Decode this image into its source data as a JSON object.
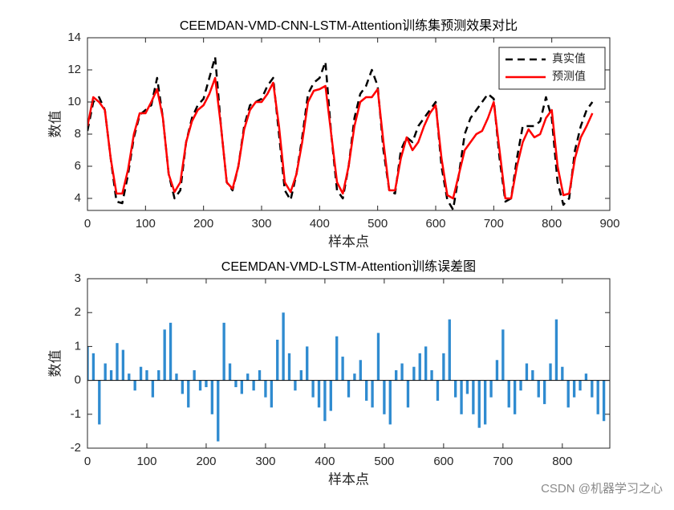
{
  "chart_data": [
    {
      "type": "line",
      "title": "CEEMDAN-VMD-CNN-LSTM-Attention训练集预测效果对比",
      "xlabel": "样本点",
      "ylabel": "数值",
      "x": [
        0,
        10,
        20,
        30,
        40,
        50,
        60,
        70,
        80,
        90,
        100,
        110,
        120,
        130,
        140,
        150,
        160,
        170,
        180,
        190,
        200,
        210,
        220,
        230,
        240,
        250,
        260,
        270,
        280,
        290,
        300,
        310,
        320,
        330,
        340,
        350,
        360,
        370,
        380,
        390,
        400,
        410,
        420,
        430,
        440,
        450,
        460,
        470,
        480,
        490,
        500,
        510,
        520,
        530,
        540,
        550,
        560,
        570,
        580,
        590,
        600,
        610,
        620,
        630,
        640,
        650,
        660,
        670,
        680,
        690,
        700,
        710,
        720,
        730,
        740,
        750,
        760,
        770,
        780,
        790,
        800,
        810,
        820,
        830,
        840,
        850,
        860,
        870
      ],
      "series": [
        {
          "name": "真实值",
          "color": "#000000",
          "linestyle": "dashed",
          "values": [
            8.2,
            10.0,
            10.3,
            9.5,
            6.5,
            3.8,
            3.7,
            5.5,
            7.8,
            9.2,
            9.5,
            9.8,
            11.5,
            9.0,
            5.5,
            4.0,
            4.5,
            7.5,
            9.0,
            9.8,
            10.2,
            11.5,
            12.8,
            8.5,
            5.0,
            4.5,
            6.0,
            8.5,
            9.8,
            10.0,
            10.2,
            11.0,
            11.5,
            8.0,
            4.5,
            3.9,
            5.5,
            7.8,
            10.5,
            11.2,
            11.5,
            12.5,
            8.0,
            4.5,
            4.0,
            6.0,
            9.0,
            10.5,
            11.0,
            12.0,
            11.0,
            7.0,
            4.5,
            4.3,
            7.0,
            7.8,
            7.5,
            8.5,
            9.0,
            9.5,
            10.0,
            6.0,
            3.9,
            3.3,
            5.5,
            8.0,
            9.0,
            9.5,
            10.0,
            10.5,
            10.2,
            6.5,
            3.8,
            4.0,
            6.5,
            8.5,
            8.5,
            8.5,
            8.8,
            10.3,
            9.0,
            5.0,
            3.6,
            4.0,
            7.0,
            8.5,
            9.5,
            10.0
          ]
        },
        {
          "name": "预测值",
          "color": "#ff0000",
          "linestyle": "solid",
          "values": [
            8.5,
            10.3,
            10.0,
            9.5,
            6.5,
            4.3,
            4.3,
            5.8,
            8.0,
            9.3,
            9.3,
            10.0,
            10.8,
            9.0,
            5.5,
            4.4,
            5.0,
            7.5,
            8.8,
            9.5,
            9.8,
            10.5,
            11.5,
            8.5,
            5.0,
            4.6,
            6.0,
            8.3,
            9.5,
            10.0,
            10.0,
            10.5,
            11.2,
            8.5,
            5.0,
            4.4,
            5.5,
            7.5,
            10.0,
            10.7,
            10.8,
            11.0,
            8.0,
            5.0,
            4.3,
            6.0,
            8.5,
            10.0,
            10.3,
            10.3,
            10.8,
            7.5,
            4.5,
            4.5,
            6.5,
            7.8,
            7.0,
            7.5,
            8.5,
            9.3,
            9.8,
            6.5,
            4.2,
            4.0,
            5.5,
            7.0,
            7.5,
            8.0,
            8.2,
            9.0,
            10.0,
            7.0,
            4.0,
            4.0,
            6.0,
            7.5,
            8.3,
            7.8,
            8.0,
            9.0,
            9.5,
            6.0,
            4.2,
            4.3,
            6.5,
            7.8,
            8.5,
            9.3
          ]
        }
      ],
      "xlim": [
        0,
        900
      ],
      "xticks": [
        0,
        100,
        200,
        300,
        400,
        500,
        600,
        700,
        800,
        900
      ],
      "ylim": [
        3.25,
        14
      ],
      "yticks": [
        4,
        6,
        8,
        10,
        12,
        14
      ],
      "legend": "northeast"
    },
    {
      "type": "bar",
      "title": "CEEMDAN-VMD-LSTM-Attention训练误差图",
      "xlabel": "样本点",
      "ylabel": "数值",
      "color": "#2f8bd0",
      "x": [
        0,
        10,
        20,
        30,
        40,
        50,
        60,
        70,
        80,
        90,
        100,
        110,
        120,
        130,
        140,
        150,
        160,
        170,
        180,
        190,
        200,
        210,
        220,
        230,
        240,
        250,
        260,
        270,
        280,
        290,
        300,
        310,
        320,
        330,
        340,
        350,
        360,
        370,
        380,
        390,
        400,
        410,
        420,
        430,
        440,
        450,
        460,
        470,
        480,
        490,
        500,
        510,
        520,
        530,
        540,
        550,
        560,
        570,
        580,
        590,
        600,
        610,
        620,
        630,
        640,
        650,
        660,
        670,
        680,
        690,
        700,
        710,
        720,
        730,
        740,
        750,
        760,
        770,
        780,
        790,
        800,
        810,
        820,
        830,
        840,
        850,
        860,
        870
      ],
      "values": [
        1.0,
        0.8,
        -1.3,
        0.5,
        0.3,
        1.1,
        0.9,
        0.2,
        -0.3,
        0.4,
        0.3,
        -0.5,
        0.3,
        1.5,
        1.7,
        0.2,
        -0.4,
        -0.8,
        0.3,
        -0.3,
        -0.2,
        -1.0,
        -1.8,
        1.7,
        0.5,
        -0.2,
        -0.4,
        0.2,
        -0.3,
        0.3,
        -0.5,
        -0.8,
        1.2,
        2.0,
        0.8,
        -0.3,
        0.3,
        1.0,
        -0.5,
        -0.8,
        -1.2,
        -0.9,
        1.3,
        0.7,
        -0.5,
        0.2,
        0.6,
        -0.6,
        -0.8,
        1.4,
        -1.0,
        -1.3,
        0.3,
        0.5,
        -0.8,
        0.4,
        0.8,
        1.0,
        0.3,
        -0.6,
        0.8,
        1.8,
        -0.5,
        -1.0,
        -0.4,
        -1.0,
        -1.4,
        -1.3,
        -0.5,
        0.6,
        1.5,
        -0.8,
        -1.0,
        -0.3,
        0.5,
        0.3,
        -0.5,
        -0.7,
        0.5,
        1.8,
        0.4,
        -0.8,
        -0.5,
        -0.3,
        0.2,
        -0.5,
        -1.0,
        -1.2
      ],
      "xlim": [
        0,
        880
      ],
      "xticks": [
        0,
        100,
        200,
        300,
        400,
        500,
        600,
        700,
        800
      ],
      "ylim": [
        -2,
        3
      ],
      "yticks": [
        -2,
        -1,
        0,
        1,
        2,
        3
      ]
    }
  ],
  "watermark": "CSDN @机器学习之心"
}
